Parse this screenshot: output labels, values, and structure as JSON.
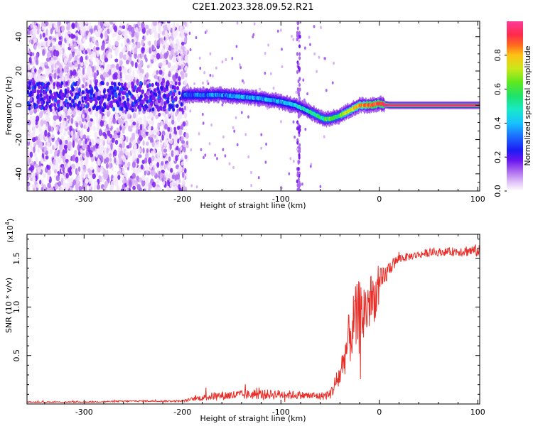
{
  "title": "C2E1.2023.328.09.52.R21",
  "colors": {
    "snr_line": "#e8302a",
    "background": "#ffffff",
    "colormap": [
      "#f3e6fb",
      "#d9b3f5",
      "#a866ef",
      "#7a1cf0",
      "#2b16f2",
      "#1a57ff",
      "#18b6ff",
      "#19e8d2",
      "#1ee27a",
      "#38e829",
      "#a6e91c",
      "#e6e21a",
      "#ff9b16",
      "#ff4a2a",
      "#ff2a72",
      "#ff36b4"
    ]
  },
  "chart_data": [
    {
      "type": "heatmap",
      "xlabel": "Height of straight line (km)",
      "ylabel": "Frequency (Hz)",
      "xlim": [
        -358,
        102
      ],
      "ylim": [
        -50,
        49
      ],
      "xticks": [
        -300,
        -200,
        -100,
        0,
        100
      ],
      "yticks": [
        -40,
        -20,
        0,
        20,
        40
      ],
      "colorbar": {
        "label": "Normalized spectral amplitude",
        "range": [
          0.0,
          1.0
        ],
        "ticks": [
          "0.0",
          "0.2",
          "0.4",
          "0.6",
          "0.8"
        ]
      },
      "ridge": {
        "x": [
          -200,
          -180,
          -160,
          -140,
          -120,
          -100,
          -85,
          -70,
          -60,
          -55,
          -50,
          -40,
          -30,
          -20,
          -10,
          0,
          10,
          50,
          100
        ],
        "freq": [
          6,
          6,
          6,
          5,
          4,
          2,
          0,
          -4,
          -7,
          -8,
          -8,
          -6,
          -3,
          0,
          0,
          1,
          0,
          0,
          0
        ],
        "amplitude": [
          0.3,
          0.35,
          0.35,
          0.4,
          0.4,
          0.4,
          0.45,
          0.5,
          0.5,
          0.55,
          0.6,
          0.6,
          0.7,
          0.8,
          0.85,
          0.9,
          0.9,
          0.9,
          0.9
        ]
      }
    },
    {
      "type": "line",
      "xlabel": "Height of straight line (km)",
      "ylabel": "SNR (10 * v/v)",
      "y_multiplier": "(x10",
      "y_multiplier_exp": "4",
      "y_multiplier_close": ")",
      "xlim": [
        -358,
        102
      ],
      "ylim": [
        0,
        1.75
      ],
      "xticks": [
        -300,
        -200,
        -100,
        0,
        100
      ],
      "yticks": [
        0.5,
        1.0,
        1.5
      ],
      "ytick_labels": [
        "0.5",
        "1.0",
        "1.5"
      ],
      "x": [
        -358,
        -300,
        -250,
        -200,
        -190,
        -170,
        -150,
        -120,
        -100,
        -80,
        -60,
        -50,
        -45,
        -40,
        -35,
        -30,
        -25,
        -20,
        -15,
        -10,
        -5,
        0,
        5,
        10,
        20,
        30,
        50,
        70,
        90,
        100
      ],
      "y": [
        0.02,
        0.02,
        0.03,
        0.03,
        0.05,
        0.08,
        0.09,
        0.1,
        0.1,
        0.09,
        0.08,
        0.1,
        0.2,
        0.3,
        0.5,
        0.7,
        0.85,
        0.9,
        0.95,
        1.05,
        1.1,
        1.2,
        1.3,
        1.4,
        1.5,
        1.52,
        1.56,
        1.57,
        1.58,
        1.58
      ],
      "noise": [
        0.005,
        0.006,
        0.008,
        0.01,
        0.02,
        0.04,
        0.05,
        0.05,
        0.05,
        0.04,
        0.04,
        0.05,
        0.1,
        0.15,
        0.2,
        0.3,
        0.35,
        0.4,
        0.35,
        0.3,
        0.25,
        0.2,
        0.12,
        0.08,
        0.05,
        0.04,
        0.04,
        0.04,
        0.06,
        0.06
      ]
    }
  ]
}
